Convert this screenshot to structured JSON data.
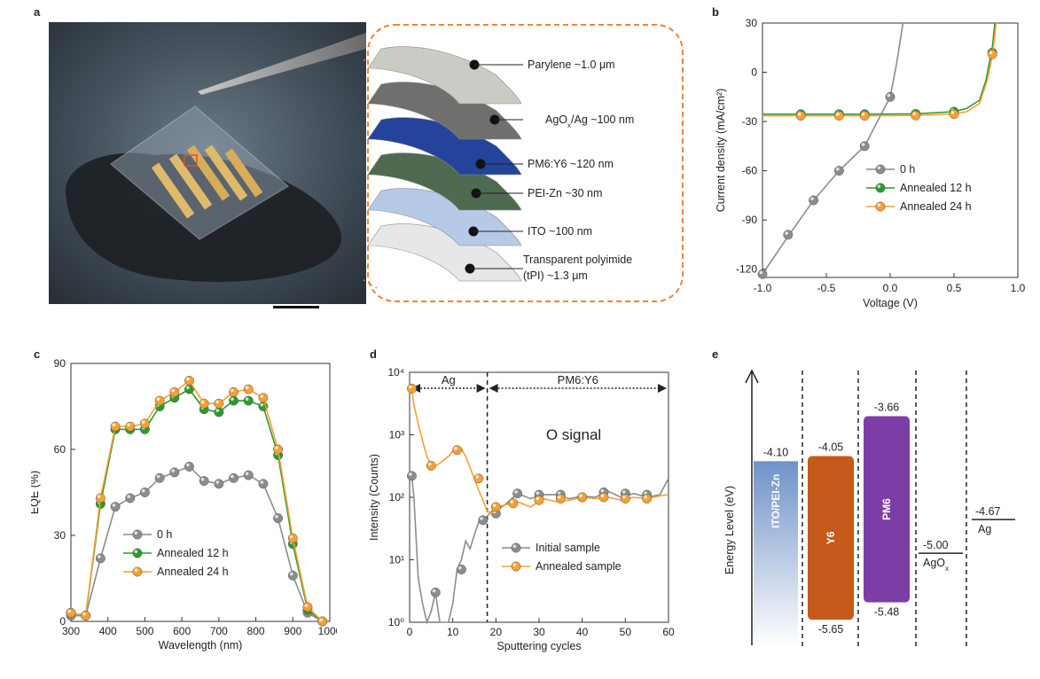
{
  "figure": {
    "panel_labels": [
      "a",
      "b",
      "c",
      "d",
      "e"
    ]
  },
  "panel_a": {
    "layers": [
      {
        "label": "Parylene  ~1.0 μm",
        "color": "#c9cbc5"
      },
      {
        "label": "AgOx/Ag ~100 nm",
        "color": "#6f706d"
      },
      {
        "label": "PM6:Y6 ~120 nm",
        "color": "#23449a"
      },
      {
        "label": "PEI-Zn  ~30 nm",
        "color": "#4e6b52"
      },
      {
        "label": "ITO  ~100 nm",
        "color": "#b6c9e7"
      },
      {
        "label": "Transparent polyimide",
        "label2": "(tPI) ~1.3 μm",
        "color": "#e6e7e8"
      }
    ],
    "layer2_parts": {
      "main": "AgO",
      "sub": "x",
      "rest": "/Ag ~100 nm"
    },
    "accent_color": "#e8873a"
  },
  "chart_data": [
    {
      "panel": "b",
      "type": "line",
      "xlabel": "Voltage (V)",
      "ylabel": "Current density (mA/cm²)",
      "xlim": [
        -1.0,
        1.0
      ],
      "ylim": [
        -125,
        30
      ],
      "xticks": [
        "-1.0",
        "-0.5",
        "0.0",
        "0.5",
        "1.0"
      ],
      "yticks": [
        "30",
        "0",
        "-30",
        "-60",
        "-90",
        "-120"
      ],
      "legend": "right",
      "series": [
        {
          "name": "0 h",
          "color": "#8c8c8c",
          "x": [
            -1.0,
            -0.8,
            -0.6,
            -0.4,
            -0.2,
            0.0,
            0.05,
            0.1
          ],
          "y": [
            -123,
            -100,
            -78,
            -60,
            -45,
            -15,
            5,
            30
          ],
          "markers_x": [
            -1.0,
            -0.8,
            -0.6,
            -0.4,
            -0.2,
            0.0
          ],
          "markers_y": [
            -123,
            -99,
            -78,
            -60,
            -45,
            -15
          ]
        },
        {
          "name": "Annealed 12 h",
          "color": "#2e9a2e",
          "x": [
            -1.0,
            -0.7,
            -0.4,
            -0.2,
            0.2,
            0.5,
            0.6,
            0.7,
            0.75,
            0.8,
            0.82
          ],
          "y": [
            -25.5,
            -25.5,
            -25.5,
            -25.5,
            -25.3,
            -24,
            -22,
            -17,
            -5,
            15,
            30
          ],
          "markers_x": [
            -0.7,
            -0.4,
            -0.2,
            0.2,
            0.5,
            0.8
          ],
          "markers_y": [
            -25.5,
            -25.5,
            -25.5,
            -25.3,
            -24,
            12
          ]
        },
        {
          "name": "Annealed 24 h",
          "color": "#f5a033",
          "x": [
            -1.0,
            -0.7,
            -0.4,
            -0.2,
            0.2,
            0.5,
            0.6,
            0.7,
            0.76,
            0.8,
            0.83
          ],
          "y": [
            -26.5,
            -26.5,
            -26.5,
            -26.5,
            -26.3,
            -25.5,
            -24,
            -19,
            -5,
            10,
            30
          ],
          "markers_x": [
            -0.7,
            -0.4,
            -0.2,
            0.2,
            0.5,
            0.8
          ],
          "markers_y": [
            -26.5,
            -26.5,
            -26.5,
            -26.3,
            -25.5,
            11
          ]
        }
      ]
    },
    {
      "panel": "c",
      "type": "line",
      "xlabel": "Wavelength (nm)",
      "ylabel": "EQE (%)",
      "xlim": [
        300,
        1000
      ],
      "ylim": [
        0,
        90
      ],
      "xticks": [
        "300",
        "400",
        "500",
        "600",
        "700",
        "800",
        "900",
        "1000"
      ],
      "yticks": [
        "0",
        "30",
        "60",
        "90"
      ],
      "legend": "lower-center",
      "series": [
        {
          "name": "0 h",
          "color": "#8c8c8c",
          "x": [
            300,
            340,
            380,
            420,
            460,
            500,
            540,
            580,
            620,
            660,
            700,
            740,
            780,
            820,
            860,
            900,
            940,
            980
          ],
          "y": [
            2,
            2,
            22,
            40,
            43,
            45,
            50,
            52,
            54,
            49,
            48,
            50,
            51,
            48,
            36,
            16,
            3,
            0
          ]
        },
        {
          "name": "Annealed 12 h",
          "color": "#2e9a2e",
          "x": [
            300,
            340,
            380,
            420,
            460,
            500,
            540,
            580,
            620,
            660,
            700,
            740,
            780,
            820,
            860,
            900,
            940,
            980
          ],
          "y": [
            3,
            2,
            41,
            67,
            67,
            67,
            75,
            78,
            81,
            74,
            73,
            77,
            77,
            75,
            58,
            27,
            4,
            0
          ]
        },
        {
          "name": "Annealed 24 h",
          "color": "#f5a033",
          "x": [
            300,
            340,
            380,
            420,
            460,
            500,
            540,
            580,
            620,
            660,
            700,
            740,
            780,
            820,
            860,
            900,
            940,
            980
          ],
          "y": [
            3,
            2,
            43,
            68,
            68,
            69,
            77,
            80,
            84,
            76,
            76,
            80,
            81,
            78,
            60,
            29,
            5,
            0
          ]
        }
      ]
    },
    {
      "panel": "d",
      "type": "line",
      "xlabel": "Sputtering cycles",
      "ylabel": "Intensity (Counts)",
      "yscale": "log",
      "xlim": [
        0,
        60
      ],
      "ylim": [
        1,
        10000
      ],
      "xticks": [
        "0",
        "10",
        "20",
        "30",
        "40",
        "50",
        "60"
      ],
      "yticks": [
        "10⁰",
        "10¹",
        "10²",
        "10³",
        "10⁴"
      ],
      "annotations": {
        "region1": "Ag",
        "region2": "PM6:Y6",
        "signal": "O signal",
        "divider_x": 18
      },
      "legend": "lower-right",
      "series": [
        {
          "name": "Initial sample",
          "color": "#8c8c8c",
          "x": [
            0.5,
            1,
            2,
            3,
            4,
            5,
            6,
            7,
            8,
            9,
            10,
            11,
            12,
            13,
            14,
            15,
            16,
            17,
            18,
            19,
            20,
            22,
            25,
            28,
            31,
            34,
            37,
            40,
            43,
            46,
            49,
            52,
            55,
            58,
            60
          ],
          "y": [
            220,
            100,
            5,
            2,
            1,
            1.5,
            3,
            1,
            1,
            1,
            2,
            7,
            10,
            20,
            15,
            25,
            40,
            45,
            50,
            60,
            60,
            75,
            115,
            95,
            110,
            110,
            95,
            105,
            100,
            125,
            100,
            115,
            100,
            110,
            200
          ],
          "markers_x": [
            0.5,
            6,
            12,
            17,
            20,
            25,
            30,
            35,
            40,
            45,
            50,
            55
          ],
          "markers_y": [
            220,
            3,
            7,
            43,
            55,
            115,
            110,
            110,
            100,
            120,
            115,
            110
          ]
        },
        {
          "name": "Annealed sample",
          "color": "#f5a033",
          "x": [
            0.5,
            1,
            2,
            3,
            4,
            5,
            6,
            7,
            8,
            9,
            10,
            11,
            12,
            13,
            14,
            15,
            16,
            17,
            18,
            19,
            20,
            22,
            25,
            28,
            31,
            34,
            37,
            40,
            43,
            46,
            49,
            52,
            55,
            58,
            60
          ],
          "y": [
            5500,
            3000,
            1500,
            800,
            450,
            320,
            320,
            350,
            400,
            450,
            550,
            620,
            600,
            450,
            300,
            200,
            130,
            90,
            60,
            55,
            70,
            75,
            85,
            70,
            95,
            85,
            90,
            100,
            95,
            100,
            90,
            100,
            95,
            105,
            110
          ],
          "markers_x": [
            0.5,
            5,
            11,
            16,
            20,
            24,
            30,
            35,
            40,
            45,
            50,
            55
          ],
          "markers_y": [
            5500,
            320,
            570,
            200,
            70,
            80,
            90,
            95,
            100,
            100,
            95,
            95
          ]
        }
      ]
    }
  ],
  "panel_e": {
    "ylabel": "Energy Level (eV)",
    "levels": [
      {
        "name": "ITO/PEI-Zn",
        "top_value": "-4.10",
        "color": "#6f92c7"
      },
      {
        "name": "Y6",
        "top_value": "-4.05",
        "bottom_value": "-5.65",
        "color": "#c55a1b"
      },
      {
        "name": "PM6",
        "top_value": "-3.66",
        "bottom_value": "-5.48",
        "color": "#7b3ea6"
      },
      {
        "name": "AgOx",
        "name_main": "AgO",
        "name_sub": "x",
        "value": "-5.00"
      },
      {
        "name": "Ag",
        "value": "-4.67"
      }
    ]
  }
}
